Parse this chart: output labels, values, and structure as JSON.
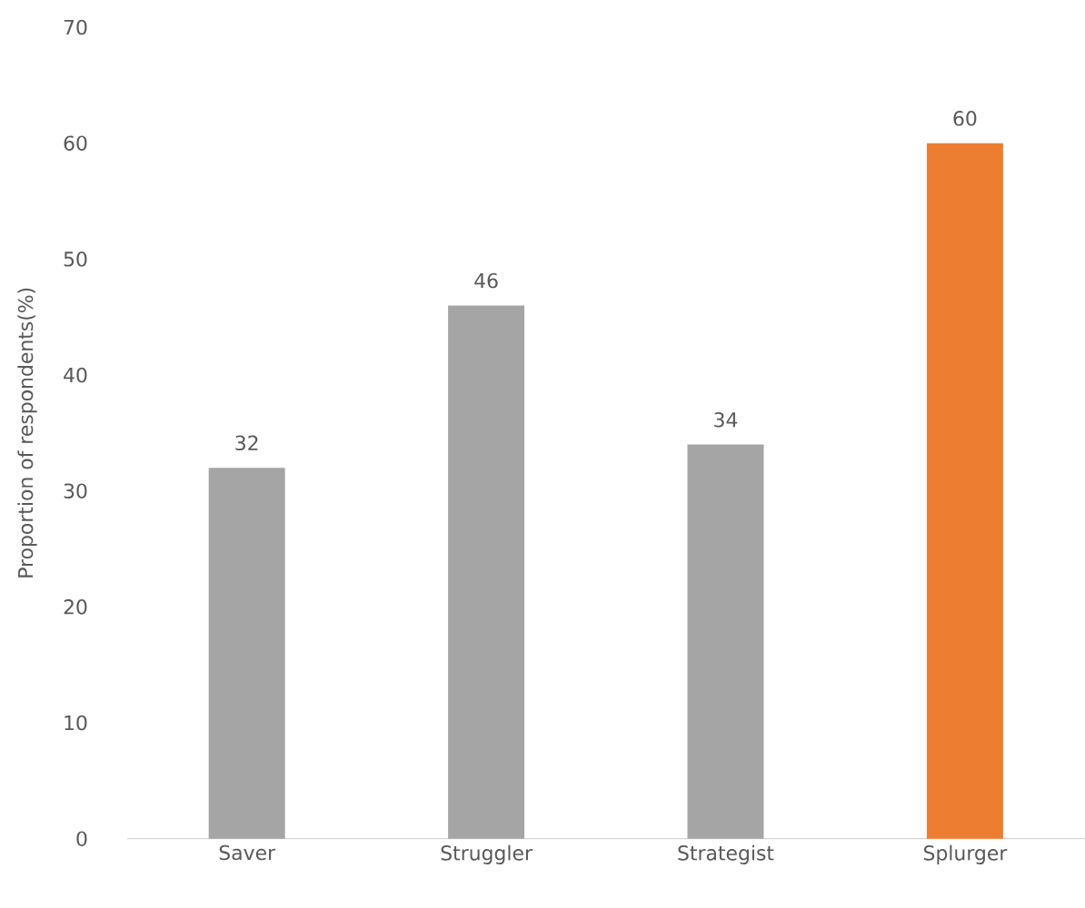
{
  "chart_data": {
    "type": "bar",
    "categories": [
      "Saver",
      "Struggler",
      "Strategist",
      "Splurger"
    ],
    "values": [
      32,
      46,
      34,
      60
    ],
    "colors": [
      "#a5a5a5",
      "#a5a5a5",
      "#a5a5a5",
      "#ed7d31"
    ],
    "ylabel": "Proportion of respondents(%)",
    "ylim": [
      0,
      70
    ],
    "yticks": [
      0,
      10,
      20,
      30,
      40,
      50,
      60,
      70
    ],
    "data_labels": true
  }
}
